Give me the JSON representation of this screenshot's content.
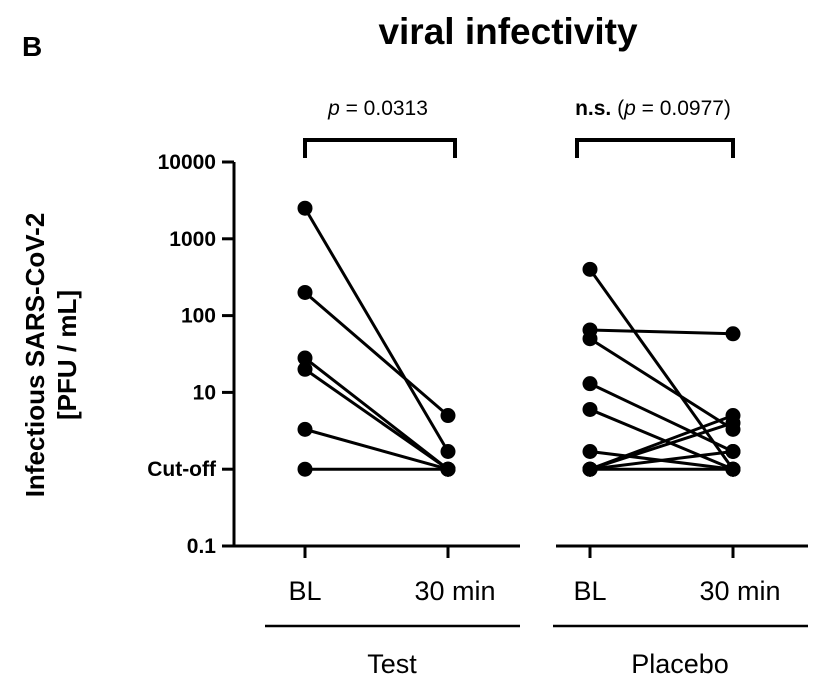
{
  "panel_label": "B",
  "chart_data": {
    "type": "scatter",
    "title": "viral infectivity",
    "ylabel_line1": "Infectious SARS-CoV-2",
    "ylabel_line2": "[PFU / mL]",
    "yscale": "log",
    "ylim": [
      0.1,
      10000
    ],
    "yticks": [
      {
        "value": 10000,
        "label": "10000"
      },
      {
        "value": 1000,
        "label": "1000"
      },
      {
        "value": 100,
        "label": "100"
      },
      {
        "value": 10,
        "label": "10"
      },
      {
        "value": 1,
        "label": "Cut-off"
      },
      {
        "value": 0.1,
        "label": "0.1"
      }
    ],
    "groups": [
      {
        "name": "Test",
        "categories": [
          "BL",
          "30 min"
        ],
        "p_prefix": "",
        "p_italic": "p",
        "p_rest": " = 0.0313",
        "pairs": [
          [
            2500,
            1.7
          ],
          [
            200,
            5
          ],
          [
            28,
            1
          ],
          [
            20,
            1
          ],
          [
            3.3,
            1
          ],
          [
            1,
            1
          ]
        ]
      },
      {
        "name": "Placebo",
        "categories": [
          "BL",
          "30 min"
        ],
        "p_prefix": "n.s.",
        "p_open": " (",
        "p_italic": "p",
        "p_rest": " = 0.0977)",
        "pairs": [
          [
            400,
            1
          ],
          [
            65,
            58
          ],
          [
            50,
            3.3
          ],
          [
            13,
            1.7
          ],
          [
            6,
            1
          ],
          [
            1.7,
            1
          ],
          [
            1,
            5
          ],
          [
            1,
            4
          ],
          [
            1,
            1.7
          ],
          [
            1,
            1
          ]
        ]
      }
    ]
  }
}
